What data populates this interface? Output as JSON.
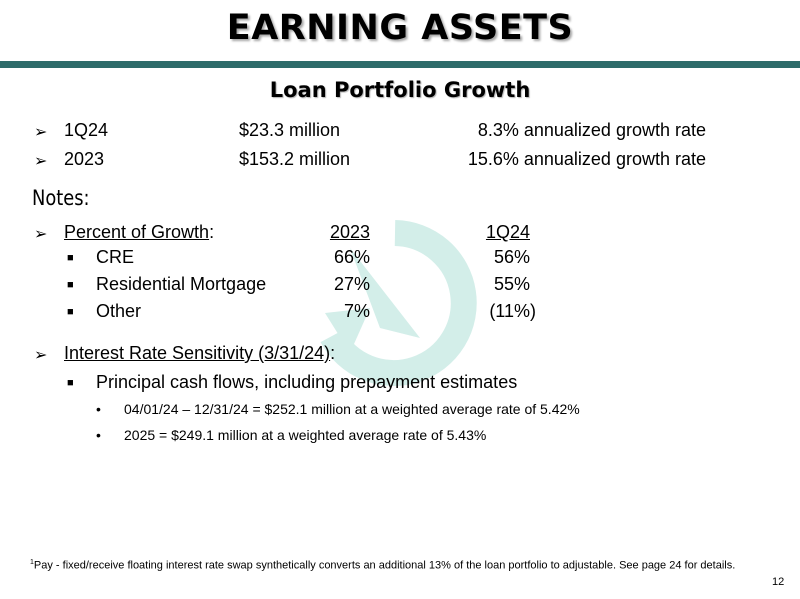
{
  "header": {
    "title": "EARNING ASSETS",
    "accent_color": "#2e6b6a"
  },
  "section": {
    "subtitle": "Loan Portfolio Growth"
  },
  "growth": [
    {
      "period": "1Q24",
      "amount": "$23.3 million",
      "rate": "8.3% annualized growth rate"
    },
    {
      "period": "2023",
      "amount": "$153.2 million",
      "rate": "15.6% annualized growth rate"
    }
  ],
  "notes": {
    "heading": "Notes:",
    "percent_growth": {
      "label": "Percent of Growth",
      "suffix": ":",
      "col_2023": "2023",
      "col_1q24": "1Q24",
      "rows": [
        {
          "name": "CRE",
          "v2023": "66%",
          "v1q24": "56%"
        },
        {
          "name": "Residential Mortgage",
          "v2023": "27%",
          "v1q24": "55%"
        },
        {
          "name": "Other",
          "v2023": "7%",
          "v1q24": "(11%)"
        }
      ]
    },
    "rate_sensitivity": {
      "label": "Interest Rate Sensitivity (3/31/24)",
      "suffix": ":",
      "sub_item": "Principal cash flows, including prepayment estimates",
      "details": [
        "04/01/24 – 12/31/24 = $252.1 million at a weighted average rate of 5.42%",
        "2025 = $249.1 million at a weighted average rate of 5.43%"
      ]
    }
  },
  "footnote": {
    "marker": "1",
    "text": "Pay - fixed/receive floating interest rate swap synthetically converts an additional 13% of the loan portfolio to adjustable.  See page 24 for details."
  },
  "page_number": "12",
  "icons": {
    "logo": "circular-arrow-logo-icon",
    "bullet_arrow": "arrow-bullet-icon",
    "bullet_square": "square-bullet-icon"
  }
}
